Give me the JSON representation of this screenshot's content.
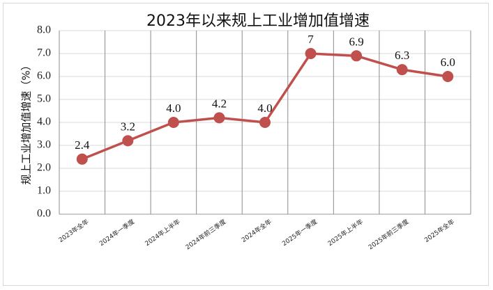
{
  "chart_data": {
    "type": "line",
    "title": "2023年以来规上工业增加值增速",
    "ylabel": "规上工业增加值增速（%）",
    "xlabel": "",
    "categories": [
      "2023年全年",
      "2024年一季度",
      "2024年上半年",
      "2024年前三季度",
      "2024年全年",
      "2025年一季度",
      "2025年上半年",
      "2025年前三季度",
      "2025年全年"
    ],
    "values": [
      2.4,
      3.2,
      4.0,
      4.2,
      4.0,
      7.0,
      6.9,
      6.3,
      6.0
    ],
    "data_labels": [
      "2.4",
      "3.2",
      "4.0",
      "4.2",
      "4.0",
      "7",
      "6.9",
      "6.3",
      "6.0"
    ],
    "ylim": [
      0,
      8
    ],
    "yticks": [
      "0.0",
      "1.0",
      "2.0",
      "3.0",
      "4.0",
      "5.0",
      "6.0",
      "7.0",
      "8.0"
    ],
    "grid": "vertical-and-horizontal",
    "legend": "none",
    "line_color": "#c0504d",
    "marker_color": "#c0504d"
  }
}
